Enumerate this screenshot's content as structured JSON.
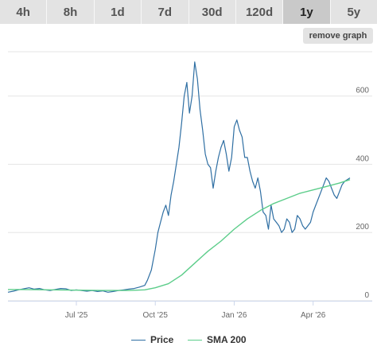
{
  "tabs": [
    {
      "label": "4h",
      "active": false
    },
    {
      "label": "8h",
      "active": false
    },
    {
      "label": "1d",
      "active": false
    },
    {
      "label": "7d",
      "active": false
    },
    {
      "label": "30d",
      "active": false
    },
    {
      "label": "120d",
      "active": false
    },
    {
      "label": "1y",
      "active": true
    },
    {
      "label": "5y",
      "active": false
    }
  ],
  "remove_graph_label": "remove graph",
  "legend": [
    {
      "label": "Price",
      "color": "#2f6fa3"
    },
    {
      "label": "SMA 200",
      "color": "#5ccd8a"
    }
  ],
  "chart_data": {
    "type": "line",
    "x_tick_labels": [
      "Jul '25",
      "Oct '25",
      "Jan '26",
      "Apr '26"
    ],
    "x_tick_months": [
      0.0,
      3.0,
      6.0,
      9.0
    ],
    "y_ticks": [
      0,
      200,
      400,
      600
    ],
    "ylim": [
      0,
      730
    ],
    "xlim_months": [
      -2.6,
      10.4
    ],
    "series": [
      {
        "name": "Price",
        "color": "#2f6fa3",
        "x_months": [
          -2.6,
          -2.4,
          -2.2,
          -2.0,
          -1.8,
          -1.6,
          -1.4,
          -1.2,
          -1.0,
          -0.8,
          -0.6,
          -0.4,
          -0.2,
          0.0,
          0.2,
          0.4,
          0.6,
          0.8,
          1.0,
          1.2,
          1.4,
          1.6,
          1.8,
          2.0,
          2.2,
          2.4,
          2.6,
          2.7,
          2.85,
          3.0,
          3.1,
          3.2,
          3.3,
          3.4,
          3.5,
          3.6,
          3.7,
          3.8,
          3.9,
          4.0,
          4.1,
          4.2,
          4.3,
          4.4,
          4.5,
          4.6,
          4.7,
          4.8,
          4.9,
          5.0,
          5.1,
          5.2,
          5.3,
          5.4,
          5.5,
          5.6,
          5.7,
          5.8,
          5.9,
          6.0,
          6.1,
          6.2,
          6.3,
          6.4,
          6.5,
          6.6,
          6.7,
          6.8,
          6.9,
          7.0,
          7.1,
          7.2,
          7.3,
          7.4,
          7.5,
          7.6,
          7.7,
          7.8,
          7.9,
          8.0,
          8.1,
          8.2,
          8.3,
          8.4,
          8.5,
          8.6,
          8.7,
          8.8,
          8.9,
          9.0,
          9.1,
          9.2,
          9.3,
          9.4,
          9.5,
          9.6,
          9.7,
          9.8,
          9.9,
          10.0,
          10.1,
          10.2,
          10.3,
          10.4
        ],
        "values": [
          25,
          28,
          32,
          35,
          38,
          34,
          36,
          32,
          30,
          33,
          36,
          35,
          30,
          32,
          30,
          28,
          30,
          27,
          29,
          25,
          27,
          30,
          32,
          34,
          36,
          40,
          45,
          60,
          90,
          150,
          200,
          230,
          260,
          280,
          250,
          310,
          350,
          400,
          450,
          520,
          600,
          640,
          550,
          600,
          700,
          650,
          560,
          500,
          430,
          400,
          390,
          330,
          380,
          420,
          450,
          470,
          430,
          380,
          420,
          510,
          530,
          500,
          480,
          420,
          420,
          380,
          350,
          330,
          360,
          320,
          260,
          250,
          210,
          280,
          240,
          230,
          220,
          200,
          210,
          240,
          230,
          200,
          210,
          250,
          240,
          220,
          210,
          220,
          230,
          260,
          280,
          300,
          320,
          340,
          360,
          350,
          330,
          310,
          300,
          320,
          340,
          350,
          355,
          360
        ]
      },
      {
        "name": "SMA 200",
        "color": "#5ccd8a",
        "x_months": [
          -2.6,
          -2.0,
          -1.0,
          0.0,
          1.0,
          2.0,
          2.6,
          3.0,
          3.5,
          4.0,
          4.5,
          5.0,
          5.5,
          6.0,
          6.5,
          7.0,
          7.5,
          8.0,
          8.5,
          9.0,
          9.5,
          10.0,
          10.4
        ],
        "values": [
          33,
          33,
          32,
          31,
          30,
          30,
          32,
          38,
          50,
          75,
          110,
          145,
          175,
          210,
          240,
          265,
          285,
          300,
          315,
          325,
          335,
          345,
          355
        ]
      }
    ]
  }
}
